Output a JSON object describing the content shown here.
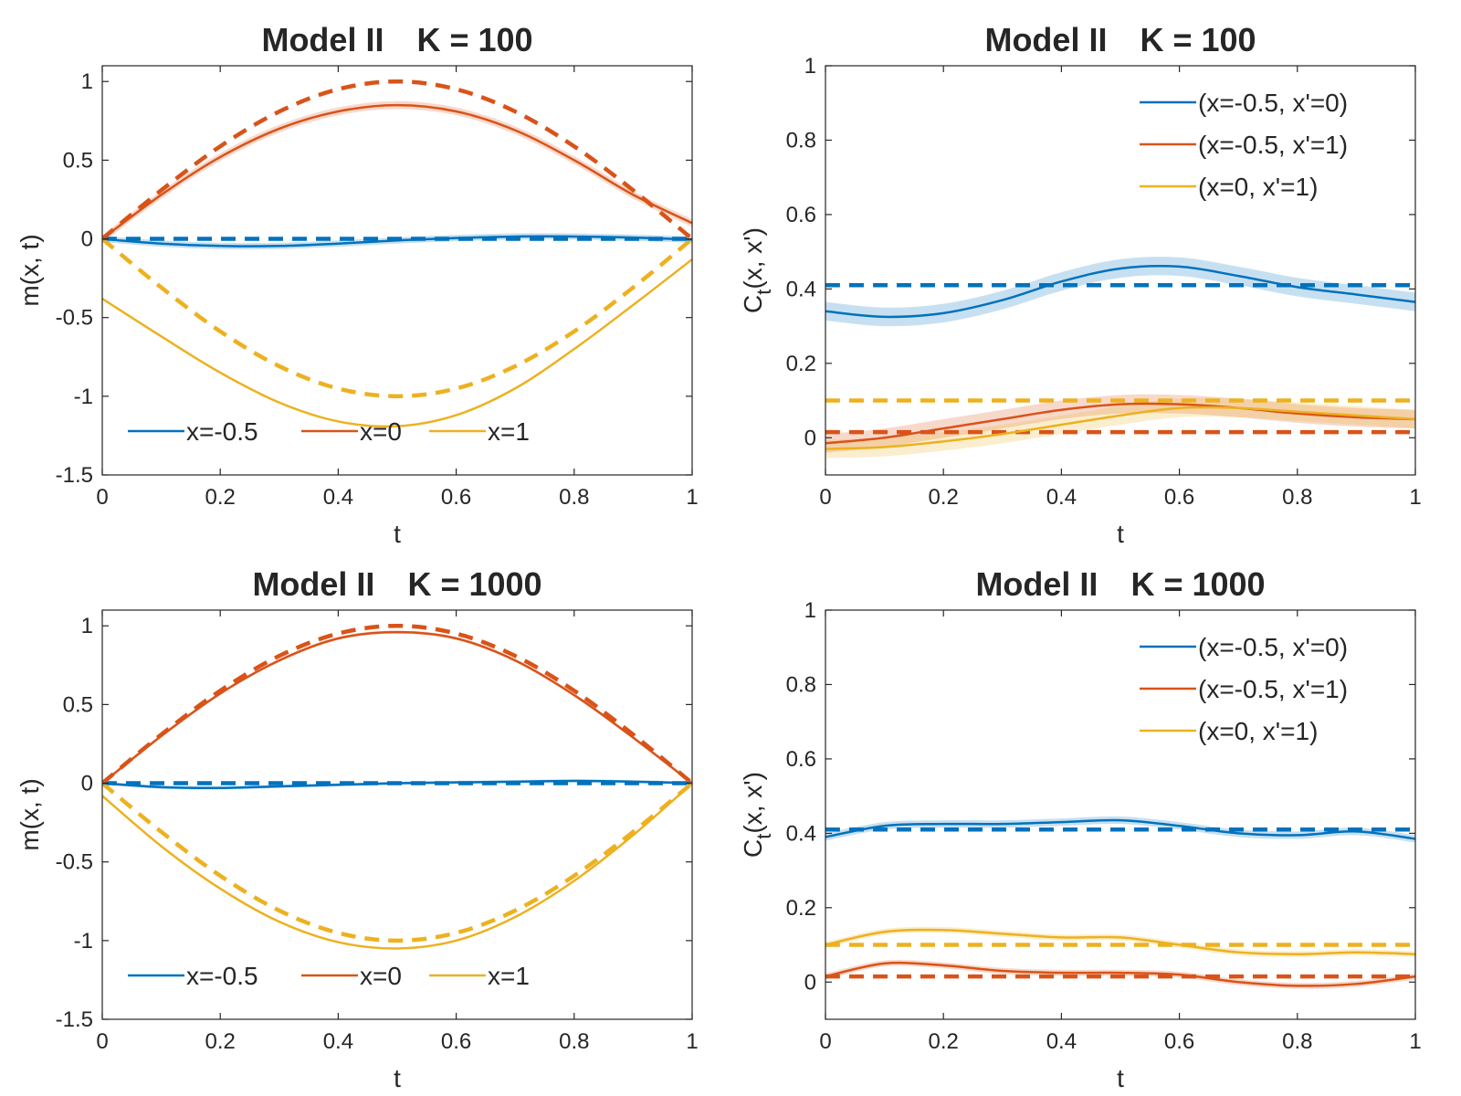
{
  "colors": {
    "blue": "#0072BD",
    "orange": "#D95319",
    "yellow": "#EDB120",
    "axis": "#262626"
  },
  "chart_data": [
    {
      "id": "mean-k100",
      "type": "line",
      "title_model": "Model II",
      "title_k": "K = 100",
      "xlabel": "t",
      "ylabel": "m(x, t)",
      "xlim": [
        0,
        1
      ],
      "ylim": [
        -1.5,
        1.1
      ],
      "xticks": [
        0,
        0.2,
        0.4,
        0.6,
        0.8,
        1
      ],
      "xtick_labels": [
        "0",
        "0.2",
        "0.4",
        "0.6",
        "0.8",
        "1"
      ],
      "yticks": [
        -1.5,
        -1,
        -0.5,
        0,
        0.5,
        1
      ],
      "ytick_labels": [
        "-1.5",
        "-1",
        "-0.5",
        "0",
        "0.5",
        "1"
      ],
      "legend_position": "bottom-horizontal",
      "legend": [
        "x=-0.5",
        "x=0",
        "x=1"
      ],
      "x": [
        0,
        0.1,
        0.2,
        0.3,
        0.4,
        0.5,
        0.6,
        0.7,
        0.8,
        0.9,
        1.0
      ],
      "series": [
        {
          "name": "x=-0.5",
          "color": "blue",
          "band": 0.02,
          "values": [
            0,
            -0.03,
            -0.045,
            -0.045,
            -0.03,
            -0.01,
            0.005,
            0.015,
            0.015,
            0.008,
            -0.005
          ],
          "reference": [
            0,
            0,
            0,
            0,
            0,
            0,
            0,
            0,
            0,
            0,
            0
          ]
        },
        {
          "name": "x=0",
          "color": "orange",
          "band": 0.025,
          "values": [
            0,
            0.28,
            0.52,
            0.7,
            0.81,
            0.85,
            0.81,
            0.69,
            0.5,
            0.28,
            0.1
          ],
          "reference": [
            0,
            0.309,
            0.588,
            0.809,
            0.951,
            1.0,
            0.951,
            0.809,
            0.588,
            0.309,
            0
          ]
        },
        {
          "name": "x=1",
          "color": "yellow",
          "band": 0,
          "values": [
            -0.38,
            -0.62,
            -0.85,
            -1.04,
            -1.16,
            -1.19,
            -1.12,
            -0.95,
            -0.7,
            -0.42,
            -0.13
          ],
          "reference": [
            0,
            -0.309,
            -0.588,
            -0.809,
            -0.951,
            -1.0,
            -0.951,
            -0.809,
            -0.588,
            -0.309,
            0
          ]
        }
      ]
    },
    {
      "id": "cov-k100",
      "type": "line",
      "title_model": "Model II",
      "title_k": "K = 100",
      "xlabel": "t",
      "ylabel_main": "C",
      "ylabel_sub": "t",
      "ylabel_rest": "(x, x')",
      "xlim": [
        0,
        1
      ],
      "ylim": [
        -0.1,
        1.0
      ],
      "xticks": [
        0,
        0.2,
        0.4,
        0.6,
        0.8,
        1
      ],
      "xtick_labels": [
        "0",
        "0.2",
        "0.4",
        "0.6",
        "0.8",
        "1"
      ],
      "yticks": [
        0,
        0.2,
        0.4,
        0.6,
        0.8,
        1
      ],
      "ytick_labels": [
        "0",
        "0.2",
        "0.4",
        "0.6",
        "0.8",
        "1"
      ],
      "legend_position": "top-right",
      "legend": [
        "(x=-0.5, x'=0)",
        "(x=-0.5, x'=1)",
        "(x=0, x'=1)"
      ],
      "x": [
        0,
        0.1,
        0.2,
        0.3,
        0.4,
        0.5,
        0.6,
        0.7,
        0.8,
        0.9,
        1.0
      ],
      "series": [
        {
          "name": "(x=-0.5, x'=0)",
          "color": "blue",
          "band": 0.025,
          "values": [
            0.34,
            0.325,
            0.335,
            0.37,
            0.42,
            0.455,
            0.46,
            0.435,
            0.405,
            0.385,
            0.365
          ],
          "reference": [
            0.41,
            0.41,
            0.41,
            0.41,
            0.41,
            0.41,
            0.41,
            0.41,
            0.41,
            0.41,
            0.41
          ]
        },
        {
          "name": "(x=-0.5, x'=1)",
          "color": "orange",
          "band": 0.025,
          "values": [
            -0.015,
            0,
            0.025,
            0.05,
            0.075,
            0.09,
            0.09,
            0.08,
            0.065,
            0.055,
            0.05
          ],
          "reference": [
            0.015,
            0.015,
            0.015,
            0.015,
            0.015,
            0.015,
            0.015,
            0.015,
            0.015,
            0.015,
            0.015
          ]
        },
        {
          "name": "(x=0, x'=1)",
          "color": "yellow",
          "band": 0.025,
          "values": [
            -0.03,
            -0.025,
            -0.01,
            0.01,
            0.035,
            0.06,
            0.08,
            0.08,
            0.07,
            0.06,
            0.05
          ],
          "reference": [
            0.1,
            0.1,
            0.1,
            0.1,
            0.1,
            0.1,
            0.1,
            0.1,
            0.1,
            0.1,
            0.1
          ]
        }
      ]
    },
    {
      "id": "mean-k1000",
      "type": "line",
      "title_model": "Model II",
      "title_k": "K = 1000",
      "xlabel": "t",
      "ylabel": "m(x, t)",
      "xlim": [
        0,
        1
      ],
      "ylim": [
        -1.5,
        1.1
      ],
      "xticks": [
        0,
        0.2,
        0.4,
        0.6,
        0.8,
        1
      ],
      "xtick_labels": [
        "0",
        "0.2",
        "0.4",
        "0.6",
        "0.8",
        "1"
      ],
      "yticks": [
        -1.5,
        -1,
        -0.5,
        0,
        0.5,
        1
      ],
      "ytick_labels": [
        "-1.5",
        "-1",
        "-0.5",
        "0",
        "0.5",
        "1"
      ],
      "legend_position": "bottom-horizontal",
      "legend": [
        "x=-0.5",
        "x=0",
        "x=1"
      ],
      "x": [
        0,
        0.1,
        0.2,
        0.3,
        0.4,
        0.5,
        0.6,
        0.7,
        0.8,
        0.9,
        1.0
      ],
      "series": [
        {
          "name": "x=-0.5",
          "color": "blue",
          "band": 0.01,
          "values": [
            0,
            -0.025,
            -0.03,
            -0.02,
            -0.01,
            0,
            0.005,
            0.01,
            0.015,
            0.01,
            0
          ],
          "reference": [
            0,
            0,
            0,
            0,
            0,
            0,
            0,
            0,
            0,
            0,
            0
          ]
        },
        {
          "name": "x=0",
          "color": "orange",
          "band": 0.01,
          "values": [
            0,
            0.3,
            0.57,
            0.78,
            0.92,
            0.96,
            0.92,
            0.78,
            0.56,
            0.29,
            0
          ],
          "reference": [
            0,
            0.309,
            0.588,
            0.809,
            0.951,
            1.0,
            0.951,
            0.809,
            0.588,
            0.309,
            0
          ]
        },
        {
          "name": "x=1",
          "color": "yellow",
          "band": 0,
          "values": [
            -0.08,
            -0.4,
            -0.67,
            -0.88,
            -1.01,
            -1.05,
            -1.0,
            -0.85,
            -0.62,
            -0.33,
            0
          ],
          "reference": [
            0,
            -0.309,
            -0.588,
            -0.809,
            -0.951,
            -1.0,
            -0.951,
            -0.809,
            -0.588,
            -0.309,
            0
          ]
        }
      ]
    },
    {
      "id": "cov-k1000",
      "type": "line",
      "title_model": "Model II",
      "title_k": "K = 1000",
      "xlabel": "t",
      "ylabel_main": "C",
      "ylabel_sub": "t",
      "ylabel_rest": "(x, x')",
      "xlim": [
        0,
        1
      ],
      "ylim": [
        -0.1,
        1.0
      ],
      "xticks": [
        0,
        0.2,
        0.4,
        0.6,
        0.8,
        1
      ],
      "xtick_labels": [
        "0",
        "0.2",
        "0.4",
        "0.6",
        "0.8",
        "1"
      ],
      "yticks": [
        0,
        0.2,
        0.4,
        0.6,
        0.8,
        1
      ],
      "ytick_labels": [
        "0",
        "0.2",
        "0.4",
        "0.6",
        "0.8",
        "1"
      ],
      "legend_position": "top-right",
      "legend": [
        "(x=-0.5, x'=0)",
        "(x=-0.5, x'=1)",
        "(x=0, x'=1)"
      ],
      "x": [
        0,
        0.1,
        0.2,
        0.3,
        0.4,
        0.5,
        0.6,
        0.7,
        0.8,
        0.9,
        1.0
      ],
      "series": [
        {
          "name": "(x=-0.5, x'=0)",
          "color": "blue",
          "band": 0.01,
          "values": [
            0.39,
            0.42,
            0.425,
            0.425,
            0.43,
            0.435,
            0.42,
            0.4,
            0.395,
            0.405,
            0.385
          ],
          "reference": [
            0.41,
            0.41,
            0.41,
            0.41,
            0.41,
            0.41,
            0.41,
            0.41,
            0.41,
            0.41,
            0.41
          ]
        },
        {
          "name": "(x=-0.5, x'=1)",
          "color": "orange",
          "band": 0.008,
          "values": [
            0.015,
            0.05,
            0.045,
            0.03,
            0.025,
            0.025,
            0.02,
            0,
            -0.01,
            -0.005,
            0.015
          ],
          "reference": [
            0.015,
            0.015,
            0.015,
            0.015,
            0.015,
            0.015,
            0.015,
            0.015,
            0.015,
            0.015,
            0.015
          ]
        },
        {
          "name": "(x=0, x'=1)",
          "color": "yellow",
          "band": 0.008,
          "values": [
            0.1,
            0.135,
            0.14,
            0.13,
            0.12,
            0.12,
            0.1,
            0.08,
            0.075,
            0.08,
            0.075
          ],
          "reference": [
            0.1,
            0.1,
            0.1,
            0.1,
            0.1,
            0.1,
            0.1,
            0.1,
            0.1,
            0.1,
            0.1
          ]
        }
      ]
    }
  ]
}
